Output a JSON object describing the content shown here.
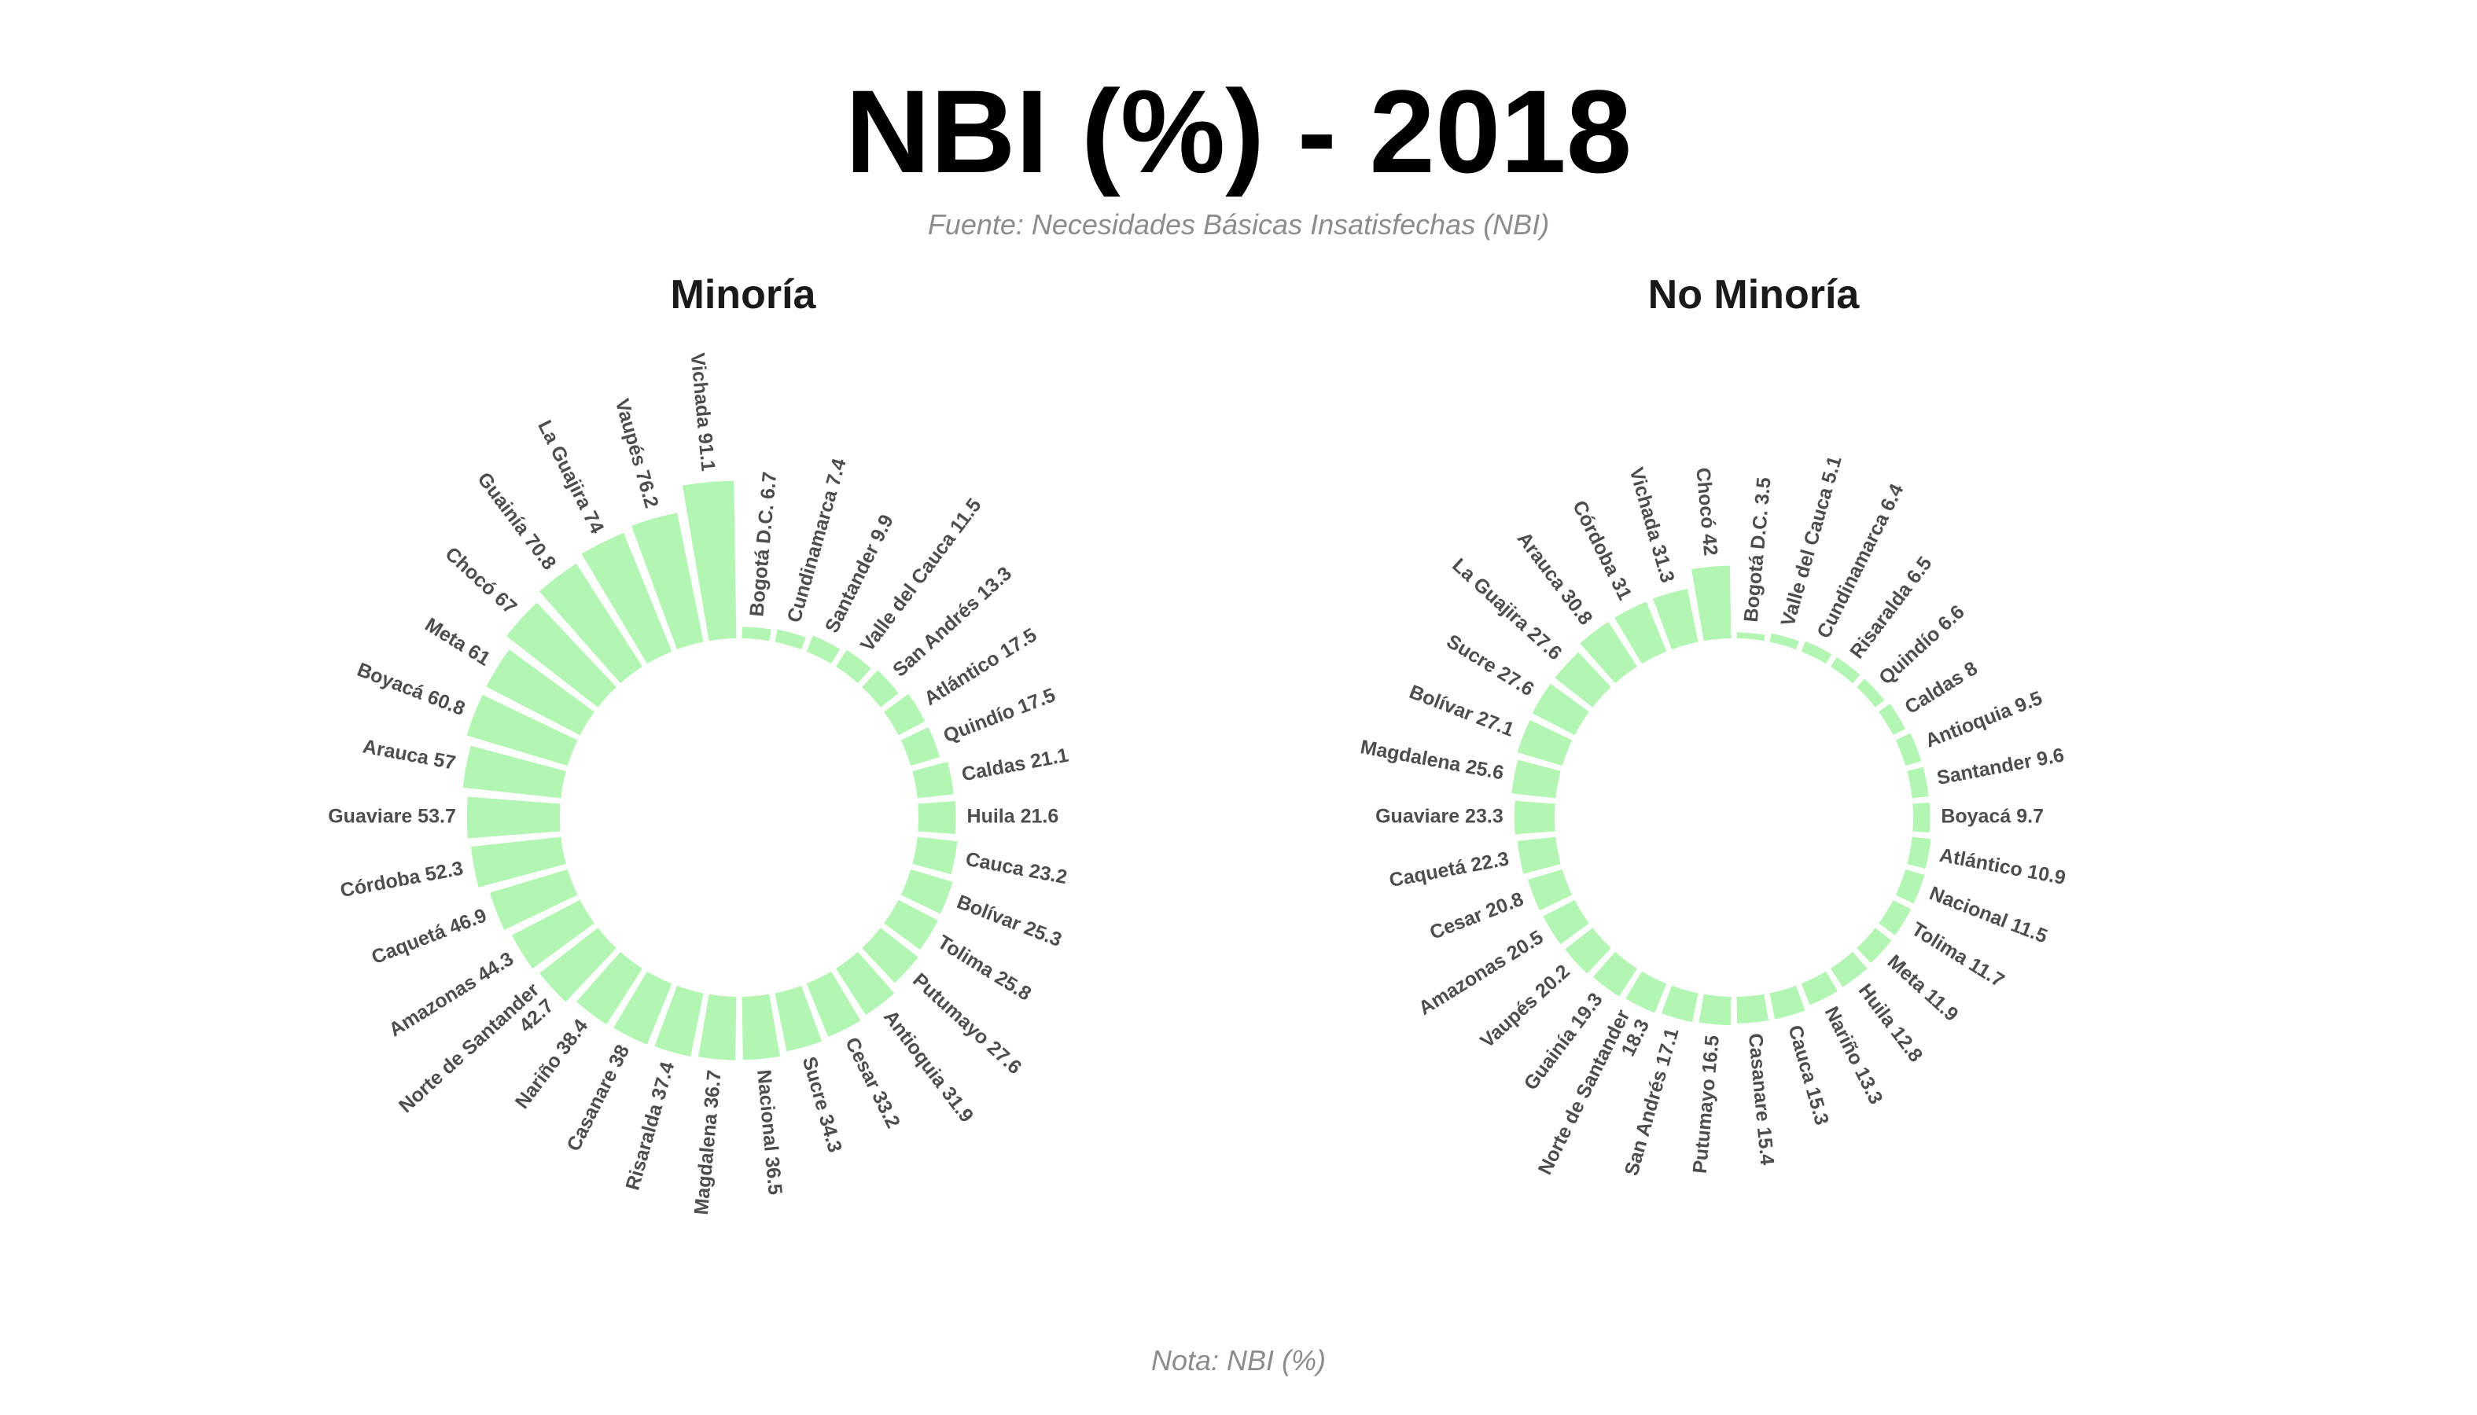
{
  "title": "NBI (%) - 2018",
  "subtitle": "Fuente: Necesidades Básicas Insatisfechas (NBI)",
  "caption": "Nota: NBI (%)",
  "colors": {
    "bar": "#b3f5b3",
    "label": "#4d4d4d"
  },
  "chart_data": [
    {
      "type": "bar",
      "polar": true,
      "panel_title": "Minoría",
      "ylim": [
        0,
        91.1
      ],
      "categories": [
        "Bogotá D.C.",
        "Cundinamarca",
        "Santander",
        "Valle del Cauca",
        "San Andrés",
        "Atlántico",
        "Quindío",
        "Caldas",
        "Huila",
        "Cauca",
        "Bolívar",
        "Tolima",
        "Putumayo",
        "Antioquia",
        "Cesar",
        "Sucre",
        "Nacional",
        "Magdalena",
        "Risaralda",
        "Casanare",
        "Nariño",
        "Norte de Santander",
        "Amazonas",
        "Caquetá",
        "Córdoba",
        "Guaviare",
        "Arauca",
        "Boyacá",
        "Meta",
        "Chocó",
        "Guainía",
        "La Guajira",
        "Vaupés",
        "Vichada"
      ],
      "values": [
        6.7,
        7.4,
        9.9,
        11.5,
        13.3,
        17.5,
        17.5,
        21.1,
        21.6,
        23.2,
        25.3,
        25.8,
        27.6,
        31.9,
        33.2,
        34.3,
        36.5,
        36.7,
        37.4,
        38,
        38.4,
        42.7,
        44.3,
        46.9,
        52.3,
        53.7,
        57,
        60.8,
        61,
        67,
        70.8,
        74,
        76.2,
        91.1
      ],
      "labels": [
        "Bogotá D.C. 6.7",
        "Cundinamarca 7.4",
        "Santander 9.9",
        "Valle del Cauca 11.5",
        "San Andrés 13.3",
        "Atlántico 17.5",
        "Quindío 17.5",
        "Caldas 21.1",
        "Huila 21.6",
        "Cauca 23.2",
        "Bolívar 25.3",
        "Tolima 25.8",
        "Putumayo 27.6",
        "Antioquia 31.9",
        "Cesar 33.2",
        "Sucre 34.3",
        "Nacional 36.5",
        "Magdalena 36.7",
        "Risaralda 37.4",
        "Casanare 38",
        "Nariño 38.4",
        "Norte de Santander\n42.7",
        "Amazonas 44.3",
        "Caquetá 46.9",
        "Córdoba 52.3",
        "Guaviare 53.7",
        "Arauca 57",
        "Boyacá 60.8",
        "Meta 61",
        "Chocó 67",
        "Guainía 70.8",
        "La Guajira 74",
        "Vaupés 76.2",
        "Vichada 91.1"
      ]
    },
    {
      "type": "bar",
      "polar": true,
      "panel_title": "No Minoría",
      "ylim": [
        0,
        91.1
      ],
      "categories": [
        "Bogotá D.C.",
        "Valle del Cauca",
        "Cundinamarca",
        "Risaralda",
        "Quindío",
        "Caldas",
        "Antioquia",
        "Santander",
        "Boyacá",
        "Atlántico",
        "Nacional",
        "Tolima",
        "Meta",
        "Huila",
        "Nariño",
        "Cauca",
        "Casanare",
        "Putumayo",
        "San Andrés",
        "Norte de Santander",
        "Guainía",
        "Vaupés",
        "Amazonas",
        "Cesar",
        "Caquetá",
        "Guaviare",
        "Magdalena",
        "Bolívar",
        "Sucre",
        "La Guajira",
        "Arauca",
        "Córdoba",
        "Vichada",
        "Chocó"
      ],
      "values": [
        3.5,
        5.1,
        6.4,
        6.5,
        6.6,
        8,
        9.5,
        9.6,
        9.7,
        10.9,
        11.5,
        11.7,
        11.9,
        12.8,
        13.3,
        15.3,
        15.4,
        16.5,
        17.1,
        18.3,
        19.3,
        20.2,
        20.5,
        20.8,
        22.3,
        23.3,
        25.6,
        27.1,
        27.6,
        27.6,
        30.8,
        31,
        31.3,
        42
      ],
      "labels": [
        "Bogotá D.C. 3.5",
        "Valle del Cauca 5.1",
        "Cundinamarca 6.4",
        "Risaralda 6.5",
        "Quindío 6.6",
        "Caldas 8",
        "Antioquia 9.5",
        "Santander 9.6",
        "Boyacá 9.7",
        "Atlántico 10.9",
        "Nacional 11.5",
        "Tolima 11.7",
        "Meta 11.9",
        "Huila 12.8",
        "Nariño 13.3",
        "Cauca 15.3",
        "Casanare 15.4",
        "Putumayo 16.5",
        "San Andrés 17.1",
        "Norte de Santander\n18.3",
        "Guainía 19.3",
        "Vaupés 20.2",
        "Amazonas 20.5",
        "Cesar 20.8",
        "Caquetá 22.3",
        "Guaviare 23.3",
        "Magdalena 25.6",
        "Bolívar 27.1",
        "Sucre 27.6",
        "La Guajira 27.6",
        "Arauca 30.8",
        "Córdoba 31",
        "Vichada 31.3",
        "Chocó 42"
      ]
    }
  ]
}
